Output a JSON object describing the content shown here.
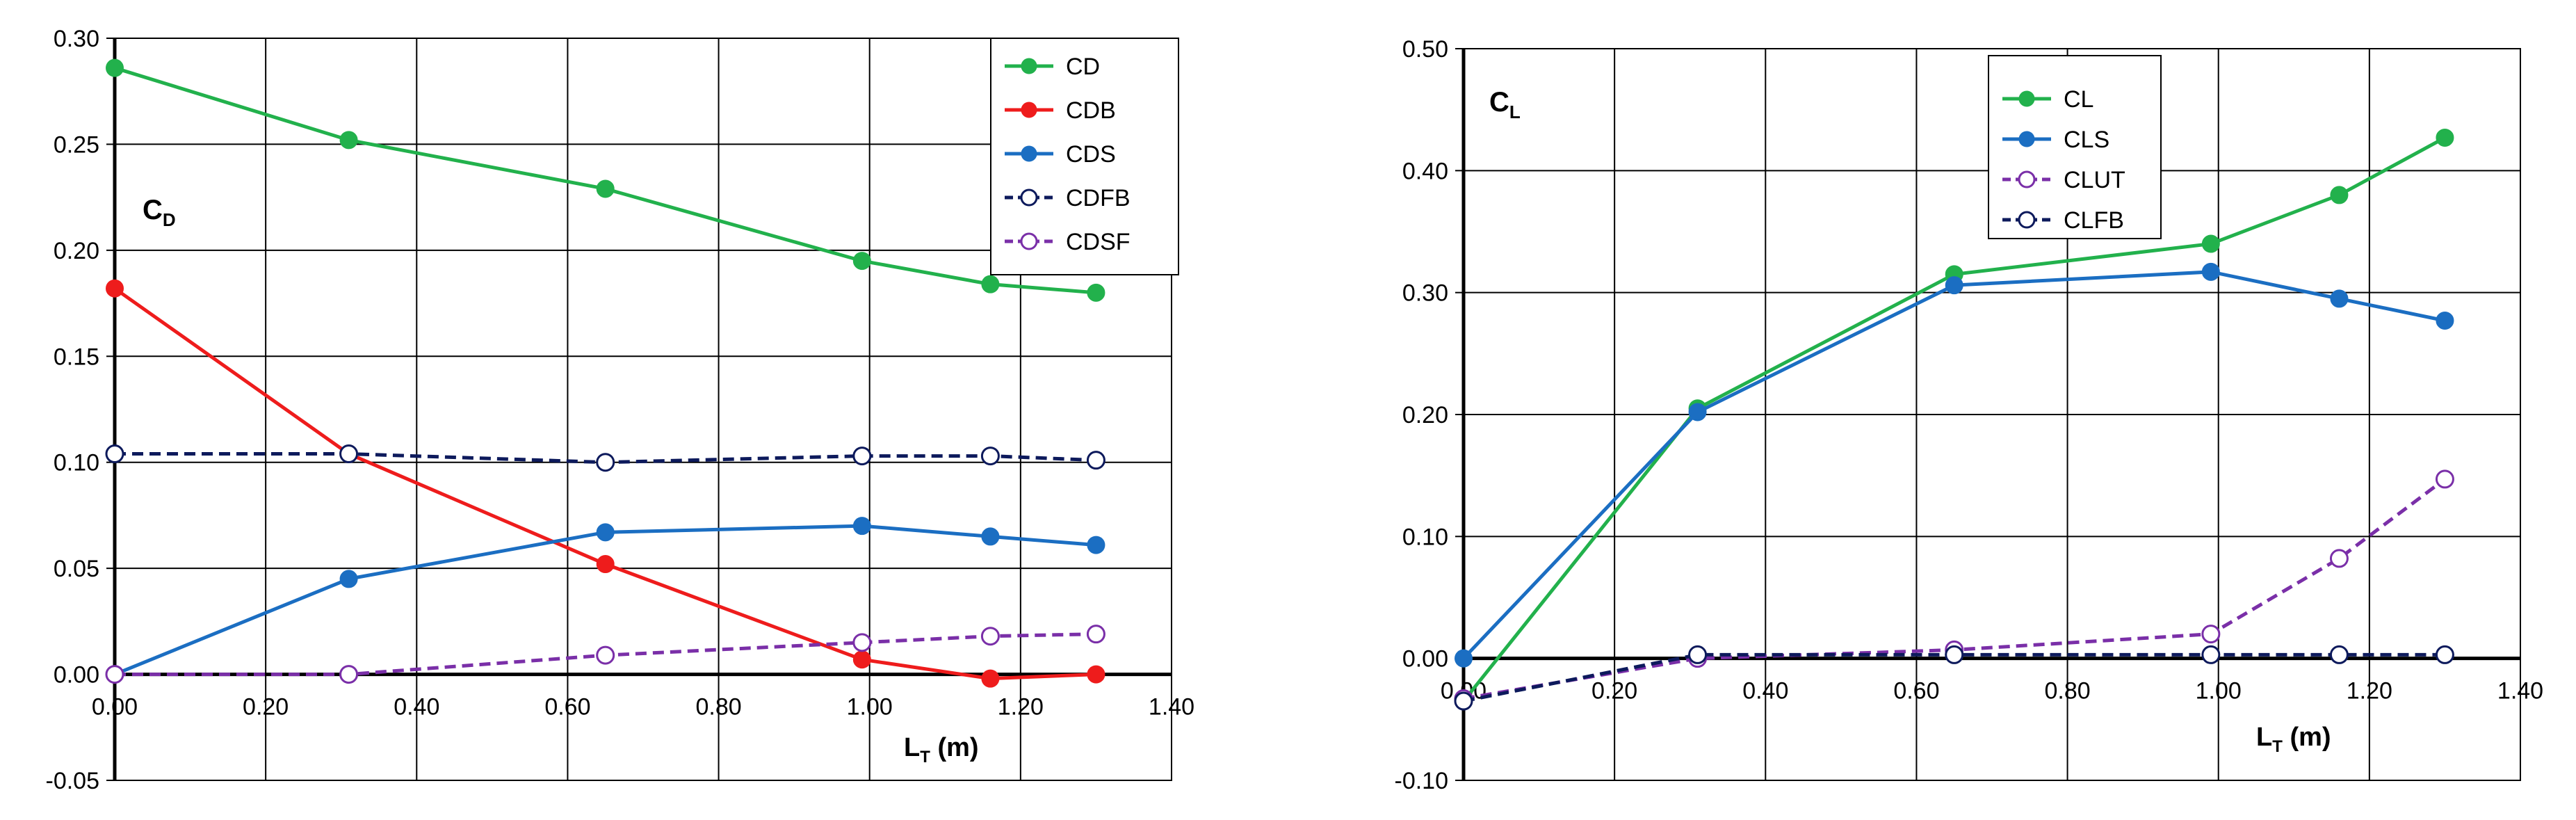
{
  "colors": {
    "green": "#22b14c",
    "red": "#ee1c1c",
    "blue": "#1b6ec2",
    "navy": "#0d1a5c",
    "purple": "#7a2fa8"
  },
  "chart_data": [
    {
      "type": "line",
      "id": "cd",
      "title": "",
      "corner_label": "C",
      "corner_label_sub": "D",
      "xlabel": "L",
      "xlabel_sub": "T",
      "xlabel_unit": " (m)",
      "xlim": [
        0,
        1.4
      ],
      "ylim": [
        -0.05,
        0.3
      ],
      "xticks": [
        "0.00",
        "0.20",
        "0.40",
        "0.60",
        "0.80",
        "1.00",
        "1.20",
        "1.40"
      ],
      "yticks": [
        "-0.05",
        "0.00",
        "0.05",
        "0.10",
        "0.15",
        "0.20",
        "0.25",
        "0.30"
      ],
      "grid": true,
      "legend_position": "top-right",
      "series": [
        {
          "name": "CD",
          "color": "green",
          "style": "solid",
          "marker": "filled",
          "x": [
            0,
            0.31,
            0.65,
            0.99,
            1.16,
            1.3
          ],
          "y": [
            0.286,
            0.252,
            0.229,
            0.195,
            0.184,
            0.18
          ]
        },
        {
          "name": "CDB",
          "color": "red",
          "style": "solid",
          "marker": "filled",
          "x": [
            0,
            0.31,
            0.65,
            0.99,
            1.16,
            1.3
          ],
          "y": [
            0.182,
            0.104,
            0.052,
            0.007,
            -0.002,
            0.0
          ]
        },
        {
          "name": "CDS",
          "color": "blue",
          "style": "solid",
          "marker": "filled",
          "x": [
            0,
            0.31,
            0.65,
            0.99,
            1.16,
            1.3
          ],
          "y": [
            0.0,
            0.045,
            0.067,
            0.07,
            0.065,
            0.061
          ]
        },
        {
          "name": "CDFB",
          "color": "navy",
          "style": "dashed",
          "marker": "open",
          "x": [
            0,
            0.31,
            0.65,
            0.99,
            1.16,
            1.3
          ],
          "y": [
            0.104,
            0.104,
            0.1,
            0.103,
            0.103,
            0.101
          ]
        },
        {
          "name": "CDSF",
          "color": "purple",
          "style": "dashed",
          "marker": "open",
          "x": [
            0,
            0.31,
            0.65,
            0.99,
            1.16,
            1.3
          ],
          "y": [
            0.0,
            0.0,
            0.009,
            0.015,
            0.018,
            0.019
          ]
        }
      ]
    },
    {
      "type": "line",
      "id": "cl",
      "title": "",
      "corner_label": "C",
      "corner_label_sub": "L",
      "xlabel": "L",
      "xlabel_sub": "T",
      "xlabel_unit": " (m)",
      "xlim": [
        0,
        1.4
      ],
      "ylim": [
        -0.1,
        0.5
      ],
      "xticks": [
        "0.00",
        "0.20",
        "0.40",
        "0.60",
        "0.80",
        "1.00",
        "1.20",
        "1.40"
      ],
      "yticks": [
        "-0.10",
        "0.00",
        "0.10",
        "0.20",
        "0.30",
        "0.40",
        "0.50"
      ],
      "grid": true,
      "legend_position": "top-left",
      "series": [
        {
          "name": "CL",
          "color": "green",
          "style": "solid",
          "marker": "filled",
          "x": [
            0,
            0.31,
            0.65,
            0.99,
            1.16,
            1.3
          ],
          "y": [
            -0.035,
            0.205,
            0.315,
            0.34,
            0.38,
            0.427
          ]
        },
        {
          "name": "CLS",
          "color": "blue",
          "style": "solid",
          "marker": "filled",
          "x": [
            0,
            0.31,
            0.65,
            0.99,
            1.16,
            1.3
          ],
          "y": [
            0.0,
            0.202,
            0.306,
            0.317,
            0.295,
            0.277
          ]
        },
        {
          "name": "CLUT",
          "color": "purple",
          "style": "dashed",
          "marker": "open",
          "x": [
            0,
            0.31,
            0.65,
            0.99,
            1.16,
            1.3
          ],
          "y": [
            -0.033,
            0.0,
            0.007,
            0.02,
            0.082,
            0.147
          ]
        },
        {
          "name": "CLFB",
          "color": "navy",
          "style": "dashed",
          "marker": "open",
          "x": [
            0,
            0.31,
            0.65,
            0.99,
            1.16,
            1.3
          ],
          "y": [
            -0.035,
            0.003,
            0.003,
            0.003,
            0.003,
            0.003
          ]
        }
      ]
    }
  ]
}
